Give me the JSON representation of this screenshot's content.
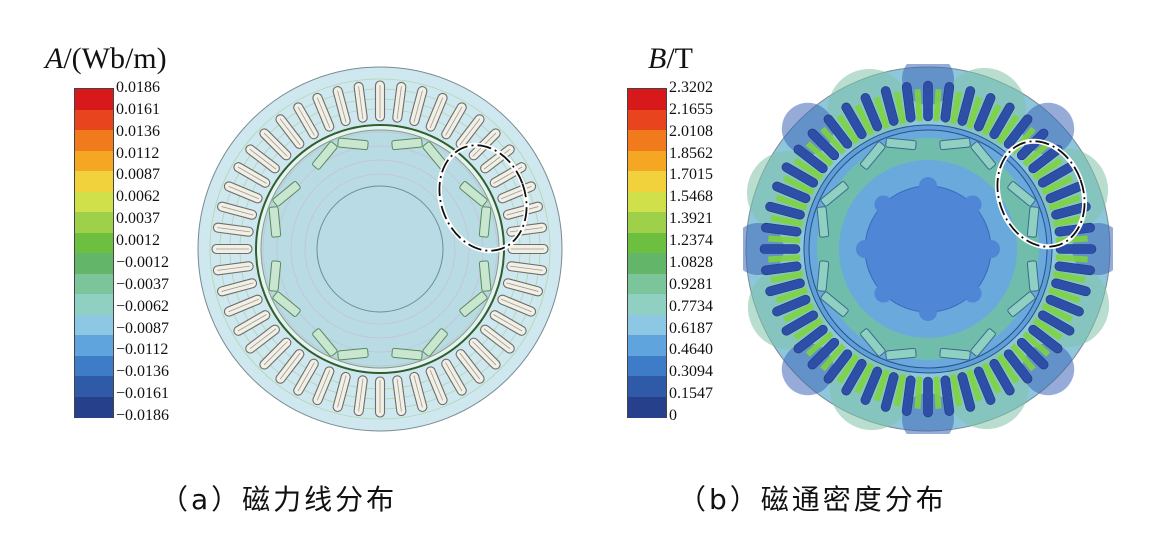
{
  "panel_a": {
    "legend_symbol": "A",
    "legend_unit": "/(Wb/m)",
    "ticks": [
      "0.0186",
      "0.0161",
      "0.0136",
      "0.0112",
      "0.0087",
      "0.0062",
      "0.0037",
      "0.0012",
      "−0.0012",
      "−0.0037",
      "−0.0062",
      "−0.0087",
      "−0.0112",
      "−0.0136",
      "−0.0161",
      "−0.0186"
    ],
    "colors": [
      "#d7191c",
      "#e8441d",
      "#f07a1c",
      "#f5a623",
      "#f2d23c",
      "#cfe04a",
      "#9fd04a",
      "#6cbf3f",
      "#63b56a",
      "#7cc49a",
      "#8fd0c2",
      "#8cc8e3",
      "#5fa4dc",
      "#3f7cc8",
      "#2f5aa8",
      "#27408c"
    ],
    "caption": "（a）磁力线分布"
  },
  "panel_b": {
    "legend_symbol": "B",
    "legend_unit": "/T",
    "ticks": [
      "2.3202",
      "2.1655",
      "2.0108",
      "1.8562",
      "1.7015",
      "1.5468",
      "1.3921",
      "1.2374",
      "1.0828",
      "0.9281",
      "0.7734",
      "0.6187",
      "0.4640",
      "0.3094",
      "0.1547",
      "0"
    ],
    "colors": [
      "#d7191c",
      "#e8441d",
      "#f07a1c",
      "#f5a623",
      "#f2d23c",
      "#cfe04a",
      "#9fd04a",
      "#6cbf3f",
      "#63b56a",
      "#7cc49a",
      "#8fd0c2",
      "#8cc8e3",
      "#5fa4dc",
      "#3f7cc8",
      "#2f5aa8",
      "#27408c"
    ],
    "caption": "（b）磁通密度分布"
  }
}
